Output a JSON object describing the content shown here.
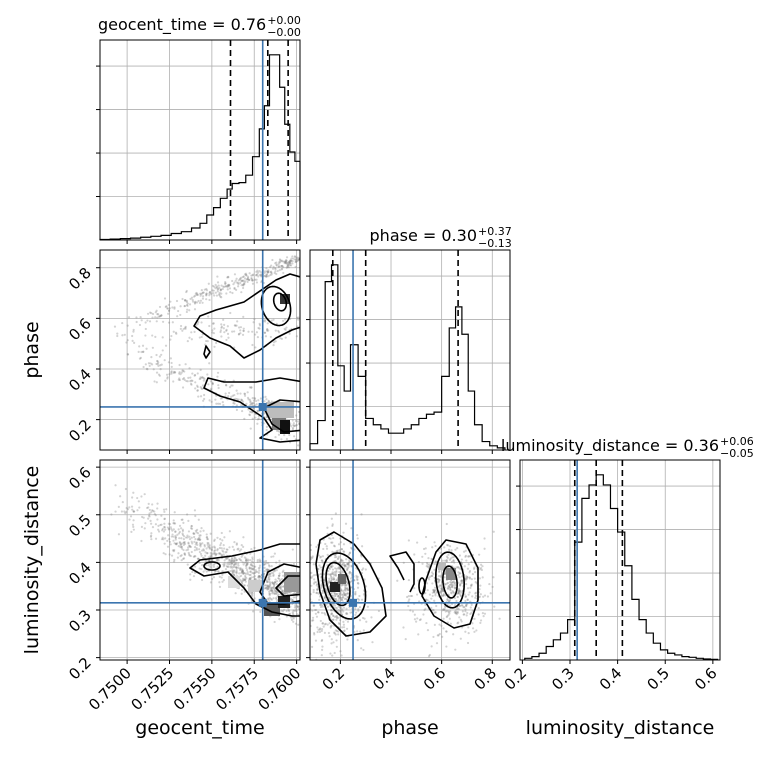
{
  "chart_data": {
    "type": "corner",
    "parameters": [
      "geocent_time",
      "phase",
      "luminosity_distance"
    ],
    "truths": {
      "geocent_time": 0.758,
      "phase": 0.25,
      "luminosity_distance": 0.315
    },
    "colors": {
      "truth": "#3b75af",
      "hist": "#000000",
      "grid": "#b0b0b0",
      "scatter": "#808080"
    },
    "grid": true,
    "titles": {
      "geocent_time": {
        "prefix": "geocent_time = 0.76",
        "plus": "+0.00",
        "minus": "−0.00"
      },
      "phase": {
        "prefix": "phase = 0.30",
        "plus": "+0.37",
        "minus": "−0.13"
      },
      "luminosity_distance": {
        "prefix": "luminosity_distance = 0.36",
        "plus": "+0.06",
        "minus": "−0.05"
      }
    },
    "axis_labels": {
      "x": [
        "geocent_time",
        "phase",
        "luminosity_distance"
      ],
      "y": [
        "phase",
        "luminosity_distance"
      ]
    },
    "ranges": {
      "geocent_time": [
        0.7484,
        0.7602
      ],
      "phase": [
        0.08,
        0.87
      ],
      "luminosity_distance": [
        0.195,
        0.615
      ]
    },
    "ticks": {
      "geocent_time": {
        "values": [
          0.75,
          0.7525,
          0.755,
          0.7575,
          0.76
        ],
        "labels": [
          "0.7500",
          "0.7525",
          "0.7550",
          "0.7575",
          "0.7600"
        ]
      },
      "phase": {
        "values": [
          0.2,
          0.4,
          0.6,
          0.8
        ],
        "labels": [
          "0.2",
          "0.4",
          "0.6",
          "0.8"
        ]
      },
      "luminosity_distance": {
        "values": [
          0.2,
          0.3,
          0.4,
          0.5,
          0.6
        ],
        "labels": [
          "0.2",
          "0.3",
          "0.4",
          "0.5",
          "0.6"
        ]
      }
    },
    "quantile_lines": {
      "geocent_time": [
        0.7561,
        0.7583,
        0.7595
      ],
      "phase": [
        0.17,
        0.3,
        0.665
      ],
      "luminosity_distance": [
        0.31,
        0.355,
        0.41
      ]
    },
    "histograms": {
      "geocent_time": {
        "edges": [
          0.7484,
          0.749,
          0.7496,
          0.7502,
          0.7508,
          0.7514,
          0.752,
          0.7526,
          0.7532,
          0.7538,
          0.7543,
          0.7547,
          0.7551,
          0.7555,
          0.7559,
          0.7562,
          0.7566,
          0.757,
          0.7574,
          0.7578,
          0.7581,
          0.7584,
          0.7587,
          0.759,
          0.7593,
          0.7596,
          0.7599,
          0.7602
        ],
        "counts": [
          0.5,
          1,
          1.5,
          2,
          3,
          4,
          5,
          7,
          9,
          13,
          18,
          27,
          35,
          45,
          55,
          61,
          62,
          70,
          90,
          120,
          145,
          200,
          200,
          165,
          125,
          95,
          85
        ]
      },
      "phase": {
        "edges": [
          0.08,
          0.11,
          0.14,
          0.165,
          0.19,
          0.215,
          0.24,
          0.27,
          0.3,
          0.33,
          0.36,
          0.39,
          0.42,
          0.45,
          0.48,
          0.51,
          0.54,
          0.57,
          0.6,
          0.63,
          0.655,
          0.68,
          0.705,
          0.73,
          0.76,
          0.79,
          0.82,
          0.85
        ],
        "counts": [
          3,
          14,
          80,
          88,
          40,
          28,
          50,
          35,
          15,
          12,
          10,
          8,
          8,
          10,
          12,
          15,
          17,
          18,
          35,
          58,
          68,
          55,
          28,
          12,
          4,
          2,
          1
        ]
      },
      "luminosity_distance": {
        "edges": [
          0.205,
          0.22,
          0.235,
          0.25,
          0.265,
          0.28,
          0.295,
          0.31,
          0.325,
          0.34,
          0.355,
          0.37,
          0.385,
          0.4,
          0.415,
          0.43,
          0.445,
          0.46,
          0.475,
          0.49,
          0.505,
          0.52,
          0.535,
          0.55,
          0.565,
          0.58,
          0.595,
          0.61
        ],
        "counts": [
          0.5,
          1,
          2,
          4,
          6,
          8,
          12,
          35,
          48,
          52,
          55,
          52,
          45,
          38,
          28,
          18,
          12,
          8,
          5,
          3,
          2,
          1.5,
          1,
          0.8,
          0.5,
          0.3,
          0.2
        ]
      }
    }
  }
}
